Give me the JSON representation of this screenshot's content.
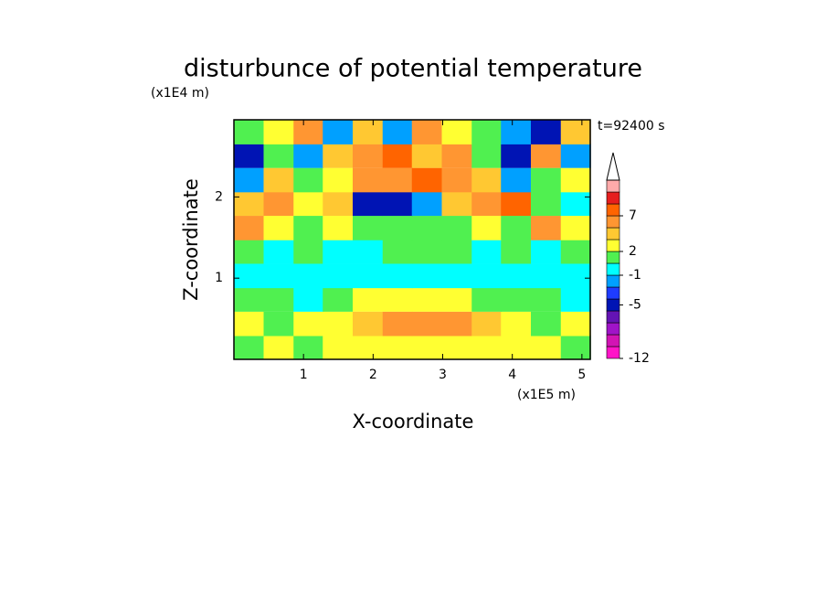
{
  "chart_data": {
    "type": "contour",
    "title": "disturbunce of potential temperature",
    "xlabel": "X-coordinate",
    "ylabel": "Z-coordinate",
    "x_unit": "(x1E5 m)",
    "y_unit": "(x1E4 m)",
    "annotation": "t=92400 s",
    "xlim": [
      0,
      5.12
    ],
    "ylim": [
      0,
      2.95
    ],
    "xticks": [
      1,
      2,
      3,
      4,
      5
    ],
    "yticks": [
      1,
      2
    ],
    "x": [
      0.21,
      0.64,
      1.07,
      1.49,
      1.92,
      2.35,
      2.77,
      3.2,
      3.63,
      4.05,
      4.48,
      4.91
    ],
    "y": [
      0.15,
      0.44,
      0.74,
      1.03,
      1.33,
      1.62,
      1.92,
      2.21,
      2.51,
      2.8
    ],
    "z": [
      [
        0,
        2,
        0,
        2,
        2,
        2,
        2,
        2,
        2,
        2,
        2,
        0
      ],
      [
        2,
        0,
        2,
        2,
        3,
        5,
        5,
        5,
        3,
        2,
        0,
        2
      ],
      [
        0,
        0,
        -1,
        0,
        2,
        2,
        2,
        2,
        0,
        0,
        0,
        -1
      ],
      [
        -1,
        -1,
        -1,
        -1,
        -1,
        -1,
        -1,
        -1,
        -1,
        -1,
        -1,
        -1
      ],
      [
        0,
        -1,
        0,
        -1,
        -1,
        0,
        0,
        0,
        -1,
        0,
        -1,
        0
      ],
      [
        5,
        2,
        0,
        2,
        0,
        0,
        0,
        0,
        2,
        0,
        5,
        2
      ],
      [
        3,
        5,
        2,
        3,
        -6,
        -6,
        -3,
        3,
        5,
        7,
        0,
        -1
      ],
      [
        -3,
        3,
        0,
        2,
        5,
        5,
        7,
        5,
        3,
        -3,
        0,
        2
      ],
      [
        -6,
        0,
        -3,
        3,
        5,
        7,
        3,
        5,
        0,
        -5,
        5,
        -3
      ],
      [
        0,
        2,
        5,
        -2,
        3,
        -3,
        5,
        2,
        0,
        -3,
        -6,
        3
      ]
    ],
    "colorbar": {
      "levels": [
        -12,
        -10,
        -8,
        -7,
        -6,
        -4,
        -3,
        -1,
        0,
        2,
        3,
        5,
        7,
        9,
        11,
        13
      ],
      "colors": [
        "#ff14c8",
        "#d214b4",
        "#a014c8",
        "#6414b4",
        "#0014b4",
        "#1e3cff",
        "#00a0ff",
        "#00ffff",
        "#50f050",
        "#ffff32",
        "#ffc832",
        "#ff9632",
        "#ff6400",
        "#e61e1e",
        "#ffaaaa"
      ],
      "over_color": "#ffffff",
      "ticks": [
        -12,
        -5,
        -1,
        2,
        7
      ]
    }
  }
}
